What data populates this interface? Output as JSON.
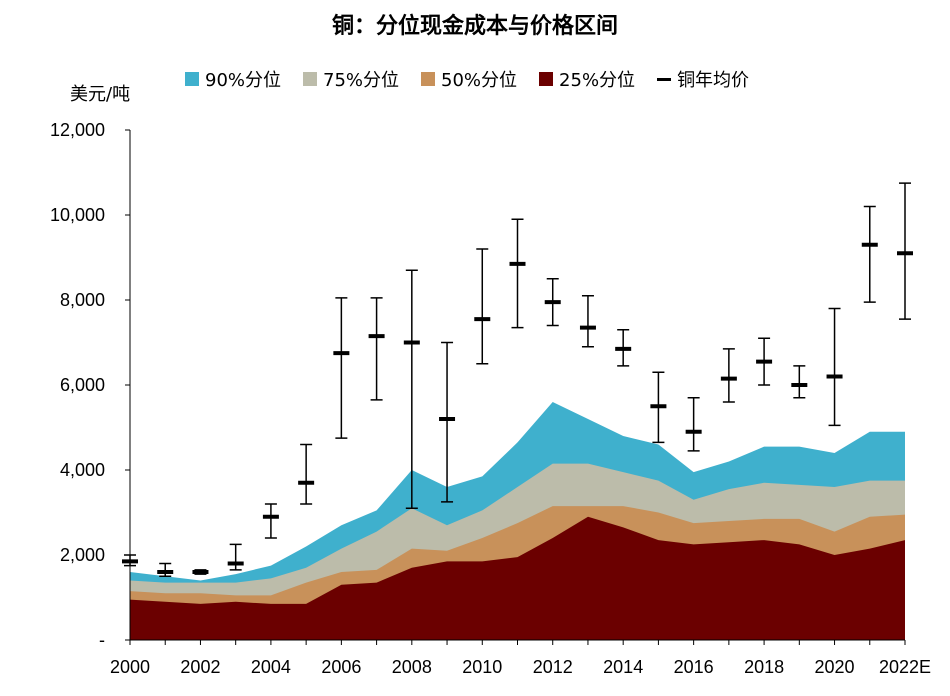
{
  "chart_data": {
    "type": "area",
    "title": "铜：分位现金成本与价格区间",
    "unit_label": "美元/吨",
    "x": [
      "2000",
      "2001",
      "2002",
      "2003",
      "2004",
      "2005",
      "2006",
      "2007",
      "2008",
      "2009",
      "2010",
      "2011",
      "2012",
      "2013",
      "2014",
      "2015",
      "2016",
      "2017",
      "2018",
      "2019",
      "2020",
      "2021",
      "2022E"
    ],
    "x_tick_labels": [
      "2000",
      "2002",
      "2004",
      "2006",
      "2008",
      "2010",
      "2012",
      "2014",
      "2016",
      "2018",
      "2020",
      "2022E"
    ],
    "y_tick_labels": [
      "-",
      "2,000",
      "4,000",
      "6,000",
      "8,000",
      "10,000",
      "12,000"
    ],
    "ylim": [
      0,
      12000
    ],
    "grid": false,
    "legend_position": "top",
    "series": [
      {
        "name": "90%分位",
        "color": "#3fb0cd",
        "values": [
          1600,
          1500,
          1400,
          1550,
          1750,
          2200,
          2700,
          3050,
          4000,
          3600,
          3850,
          4650,
          5600,
          5200,
          4800,
          4600,
          3950,
          4200,
          4550,
          4550,
          4400,
          4900,
          4900
        ]
      },
      {
        "name": "75%分位",
        "color": "#bcbcaa",
        "values": [
          1400,
          1350,
          1350,
          1350,
          1450,
          1700,
          2150,
          2550,
          3100,
          2700,
          3050,
          3600,
          4150,
          4150,
          3950,
          3750,
          3300,
          3550,
          3700,
          3650,
          3600,
          3750,
          3750
        ]
      },
      {
        "name": "50%分位",
        "color": "#c8915a",
        "values": [
          1150,
          1100,
          1100,
          1050,
          1050,
          1350,
          1600,
          1650,
          2150,
          2100,
          2400,
          2750,
          3150,
          3150,
          3150,
          3000,
          2750,
          2800,
          2850,
          2850,
          2550,
          2900,
          2950
        ]
      },
      {
        "name": "25%分位",
        "color": "#6b0000",
        "values": [
          950,
          900,
          850,
          900,
          850,
          850,
          1300,
          1350,
          1700,
          1850,
          1850,
          1950,
          2400,
          2900,
          2650,
          2350,
          2250,
          2300,
          2350,
          2250,
          2000,
          2150,
          2350
        ]
      }
    ],
    "price_series": {
      "name": "铜年均价",
      "avg": [
        1850,
        1600,
        1600,
        1800,
        2900,
        3700,
        6750,
        7150,
        7000,
        5200,
        7550,
        8850,
        7950,
        7350,
        6850,
        5500,
        4900,
        6150,
        6550,
        6000,
        6200,
        9300,
        9100
      ],
      "high": [
        2000,
        1800,
        1650,
        2250,
        3200,
        4600,
        8050,
        8050,
        8700,
        7000,
        9200,
        9900,
        8500,
        8100,
        7300,
        6300,
        5700,
        6850,
        7100,
        6450,
        7800,
        10200,
        10750
      ],
      "low": [
        1750,
        1500,
        1550,
        1650,
        2400,
        3200,
        4750,
        5650,
        3100,
        3250,
        6500,
        7350,
        7400,
        6900,
        6450,
        4650,
        4450,
        5600,
        6000,
        5700,
        5050,
        7950,
        7550
      ]
    }
  }
}
